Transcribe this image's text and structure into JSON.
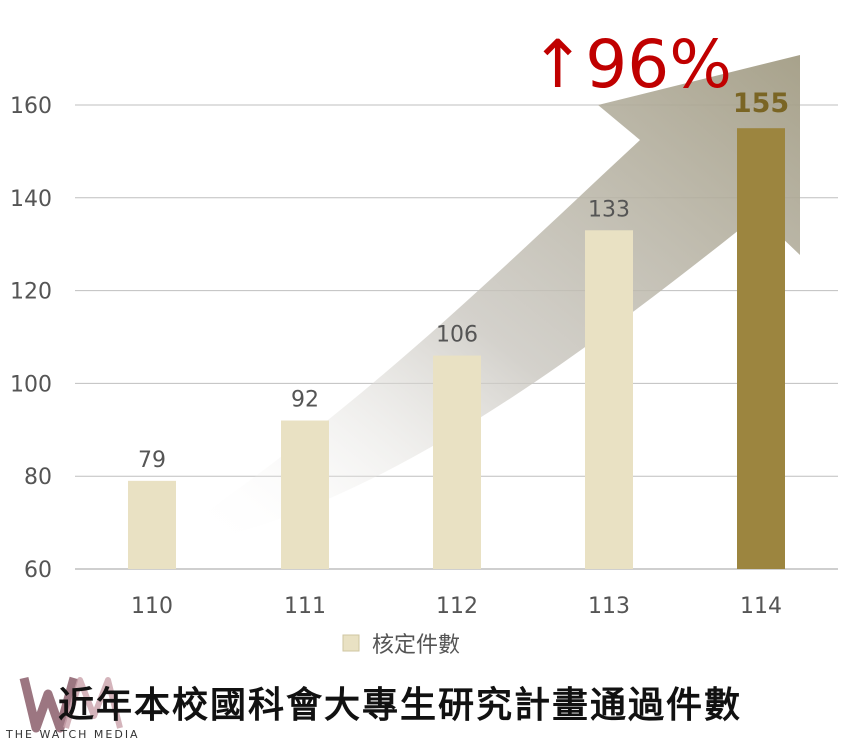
{
  "chart_data": {
    "type": "bar",
    "categories": [
      "110",
      "111",
      "112",
      "113",
      "114"
    ],
    "series": [
      {
        "name": "核定件數",
        "values": [
          79,
          92,
          106,
          133,
          155
        ]
      }
    ],
    "ylim": [
      60,
      170
    ],
    "yticks": [
      60,
      80,
      100,
      120,
      140,
      160
    ],
    "highlight_index": 4,
    "annotation": "↑96%",
    "grid": true,
    "legend_position": "bottom"
  },
  "title": "近年本校國科會大專生研究計畫通過件數",
  "logo": {
    "text": "THE WATCH MEDIA",
    "mark": "WM"
  },
  "colors": {
    "bar": "#e9e1c3",
    "bar_highlight": "#9c853f",
    "arrow": "#b7b2a8",
    "annotation": "#c00000",
    "grid": "#bfbfbf"
  }
}
